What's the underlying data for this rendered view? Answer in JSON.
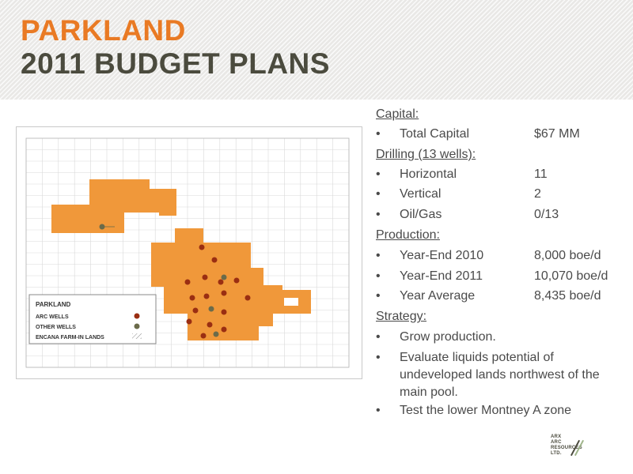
{
  "header": {
    "title_line1": "PARKLAND",
    "title_line2": "2011 BUDGET PLANS"
  },
  "colors": {
    "accent_orange": "#e97a24",
    "title_dark": "#4b4b3e",
    "lands_fill": "#f0983a",
    "arc_wells": "#9a2e12",
    "other_wells": "#6b6b4a",
    "text": "#4a4a4a"
  },
  "map": {
    "legend": {
      "title": "PARKLAND",
      "items": [
        {
          "label": "ARC WELLS",
          "symbol": "arc-well-dot-icon"
        },
        {
          "label": "OTHER WELLS",
          "symbol": "other-well-dot-icon"
        },
        {
          "label": "ENCANA FARM-IN LANDS",
          "symbol": "hatch-swatch-icon"
        }
      ]
    }
  },
  "panel": {
    "capital": {
      "heading": "Capital:",
      "items": [
        {
          "label": "Total Capital",
          "value": "$67 MM"
        }
      ]
    },
    "drilling": {
      "heading": "Drilling (13 wells):",
      "items": [
        {
          "label": "Horizontal",
          "value": "11"
        },
        {
          "label": "Vertical",
          "value": "2"
        },
        {
          "label": "Oil/Gas",
          "value": "0/13"
        }
      ]
    },
    "production": {
      "heading": "Production:",
      "items": [
        {
          "label": "Year-End 2010",
          "value": "8,000 boe/d"
        },
        {
          "label": "Year-End 2011",
          "value": "10,070 boe/d"
        },
        {
          "label": "Year Average",
          "value": "8,435 boe/d"
        }
      ]
    },
    "strategy": {
      "heading": "Strategy:",
      "items": [
        "Grow production.",
        "Evaluate liquids potential of undeveloped lands northwest of the main pool.",
        "Test the lower Montney A zone"
      ]
    },
    "bullet_symbol": "•"
  },
  "logo": {
    "line1": "ARX",
    "line2": "ARC",
    "line3": "RESOURCES",
    "line4": "LTD."
  }
}
